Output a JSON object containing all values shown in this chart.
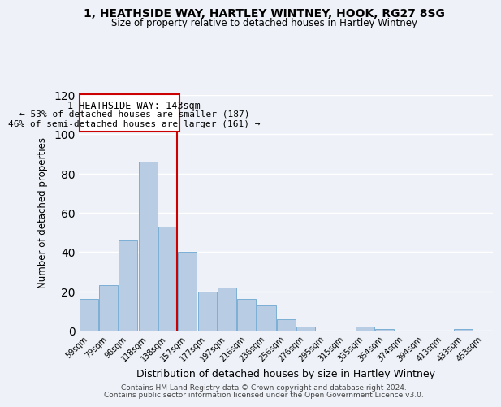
{
  "title": "1, HEATHSIDE WAY, HARTLEY WINTNEY, HOOK, RG27 8SG",
  "subtitle": "Size of property relative to detached houses in Hartley Wintney",
  "xlabel": "Distribution of detached houses by size in Hartley Wintney",
  "ylabel": "Number of detached properties",
  "bar_color": "#b8cce4",
  "bar_edge_color": "#7bafd4",
  "categories": [
    "59sqm",
    "79sqm",
    "98sqm",
    "118sqm",
    "138sqm",
    "157sqm",
    "177sqm",
    "197sqm",
    "216sqm",
    "236sqm",
    "256sqm",
    "276sqm",
    "295sqm",
    "315sqm",
    "335sqm",
    "354sqm",
    "374sqm",
    "394sqm",
    "413sqm",
    "433sqm",
    "453sqm"
  ],
  "values": [
    16,
    23,
    46,
    86,
    53,
    40,
    20,
    22,
    16,
    13,
    6,
    2,
    0,
    0,
    2,
    1,
    0,
    0,
    0,
    1,
    0
  ],
  "ylim": [
    0,
    120
  ],
  "yticks": [
    0,
    20,
    40,
    60,
    80,
    100,
    120
  ],
  "property_line_color": "#cc0000",
  "annotation_title": "1 HEATHSIDE WAY: 143sqm",
  "annotation_line1": "← 53% of detached houses are smaller (187)",
  "annotation_line2": "46% of semi-detached houses are larger (161) →",
  "annotation_box_color": "#cc0000",
  "footer1": "Contains HM Land Registry data © Crown copyright and database right 2024.",
  "footer2": "Contains public sector information licensed under the Open Government Licence v3.0.",
  "background_color": "#eef2f8",
  "grid_color": "#ffffff"
}
